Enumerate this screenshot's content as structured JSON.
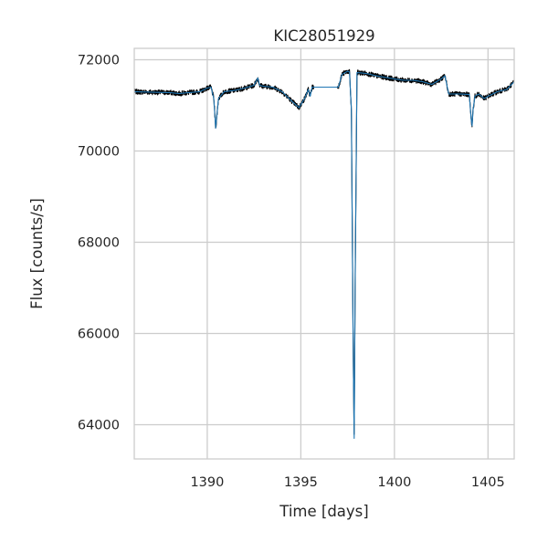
{
  "chart_data": {
    "type": "line",
    "title": "KIC28051929",
    "xlabel": "Time [days]",
    "ylabel": "Flux [counts/s]",
    "xlim": [
      1386.1,
      1406.4
    ],
    "ylim": [
      63250,
      72250
    ],
    "x_ticks": [
      1390,
      1395,
      1400,
      1405
    ],
    "y_ticks": [
      64000,
      66000,
      68000,
      70000,
      72000
    ],
    "x_tick_labels": [
      "1390",
      "1395",
      "1400",
      "1405"
    ],
    "y_tick_labels": [
      "64000",
      "66000",
      "68000",
      "70000",
      "72000"
    ],
    "grid": true,
    "legend": "none",
    "colors": {
      "raw_flux": "#000000",
      "model": "#1f77b4",
      "grid": "#cccccc",
      "frame": "#cccccc"
    },
    "series": [
      {
        "style": "raw-noisy",
        "color": "#000000",
        "x": [
          1386.1,
          1387.0,
          1388.0,
          1388.5,
          1389.0,
          1389.6,
          1390.0,
          1390.2,
          1390.35,
          1390.45,
          1390.6,
          1390.9,
          1391.5,
          1392.0,
          1392.5,
          1392.7,
          1392.8,
          1393.0,
          1393.5,
          1394.0,
          1394.5,
          1394.9,
          1395.2,
          1395.4,
          1395.5,
          1395.6,
          1397.0,
          1397.2,
          1397.5,
          1397.6,
          1397.7,
          1397.8,
          1397.85,
          1397.9,
          1398.0,
          1398.5,
          1399.0,
          1400.0,
          1400.5,
          1401.0,
          1401.5,
          1402.0,
          1402.5,
          1402.7,
          1402.9,
          1403.5,
          1404.0,
          1404.1,
          1404.15,
          1404.2,
          1404.3,
          1404.5,
          1404.8,
          1405.0,
          1405.5,
          1406.0,
          1406.4
        ],
        "y": [
          71300,
          71290,
          71280,
          71260,
          71280,
          71300,
          71380,
          71400,
          71150,
          70500,
          71150,
          71300,
          71330,
          71380,
          71440,
          71600,
          71440,
          71420,
          71400,
          71300,
          71100,
          70950,
          71150,
          71350,
          71200,
          71400,
          71400,
          71680,
          71750,
          71730,
          70900,
          65500,
          63700,
          67000,
          71720,
          71700,
          71650,
          71580,
          71550,
          71550,
          71520,
          71460,
          71580,
          71650,
          71250,
          71250,
          71240,
          70700,
          70550,
          70900,
          71200,
          71250,
          71150,
          71200,
          71300,
          71350,
          71520
        ]
      },
      {
        "style": "smooth",
        "color": "#1f77b4",
        "x": [
          1386.1,
          1387.0,
          1388.0,
          1388.5,
          1389.0,
          1389.6,
          1390.0,
          1390.2,
          1390.35,
          1390.45,
          1390.6,
          1390.9,
          1391.5,
          1392.0,
          1392.5,
          1392.7,
          1392.8,
          1393.0,
          1393.5,
          1394.0,
          1394.5,
          1394.9,
          1395.2,
          1395.4,
          1395.5,
          1395.6,
          1397.0,
          1397.2,
          1397.5,
          1397.6,
          1397.7,
          1397.8,
          1397.85,
          1397.9,
          1398.0,
          1398.5,
          1399.0,
          1400.0,
          1400.5,
          1401.0,
          1401.5,
          1402.0,
          1402.5,
          1402.7,
          1402.9,
          1403.5,
          1404.0,
          1404.1,
          1404.15,
          1404.2,
          1404.3,
          1404.5,
          1404.8,
          1405.0,
          1405.5,
          1406.0,
          1406.4
        ],
        "y": [
          71300,
          71290,
          71280,
          71260,
          71280,
          71300,
          71380,
          71400,
          71150,
          70500,
          71150,
          71300,
          71330,
          71380,
          71440,
          71600,
          71440,
          71420,
          71400,
          71300,
          71100,
          70950,
          71150,
          71350,
          71200,
          71400,
          71400,
          71680,
          71750,
          71730,
          70900,
          65500,
          63700,
          67000,
          71720,
          71700,
          71650,
          71580,
          71550,
          71550,
          71520,
          71460,
          71580,
          71650,
          71250,
          71250,
          71240,
          70700,
          70550,
          70900,
          71200,
          71250,
          71150,
          71200,
          71300,
          71350,
          71520
        ]
      }
    ]
  }
}
